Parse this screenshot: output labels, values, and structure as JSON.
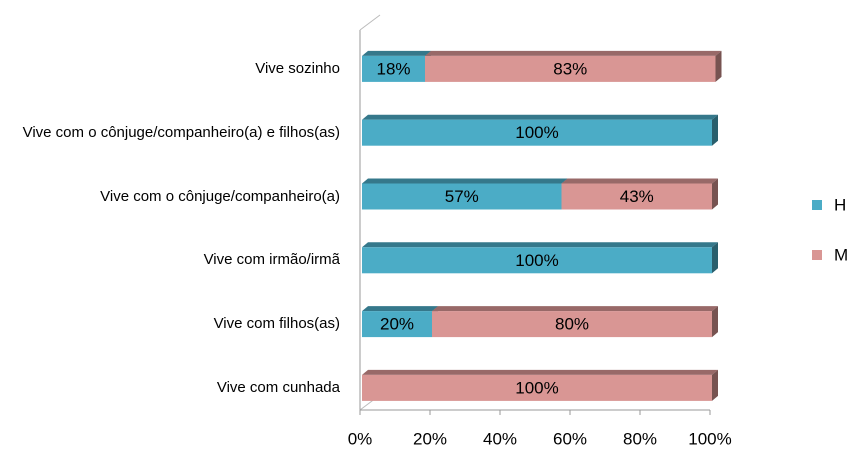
{
  "chart_data": {
    "type": "stacked-bar-horizontal",
    "categories": [
      "Vive sozinho",
      "Vive com o cônjuge/companheiro(a) e filhos(as)",
      "Vive com o cônjuge/companheiro(a)",
      "Vive com irmão/irmã",
      "Vive com filhos(as)",
      "Vive com cunhada"
    ],
    "series": [
      {
        "name": "H",
        "color": "#4bacc6",
        "values": [
          18,
          100,
          57,
          100,
          20,
          null
        ],
        "value_labels": [
          "18%",
          "100%",
          "57%",
          "100%",
          "20%",
          null
        ]
      },
      {
        "name": "M",
        "color": "#d99694",
        "values": [
          83,
          null,
          43,
          null,
          80,
          100
        ],
        "value_labels": [
          "83%",
          null,
          "43%",
          null,
          "80%",
          "100%"
        ]
      }
    ],
    "xlim": [
      0,
      100
    ],
    "xticks": [
      {
        "value": 0,
        "label": "0%"
      },
      {
        "value": 20,
        "label": "20%"
      },
      {
        "value": 40,
        "label": "40%"
      },
      {
        "value": 60,
        "label": "60%"
      },
      {
        "value": 80,
        "label": "80%"
      },
      {
        "value": 100,
        "label": "100%"
      }
    ],
    "legend": "right"
  }
}
